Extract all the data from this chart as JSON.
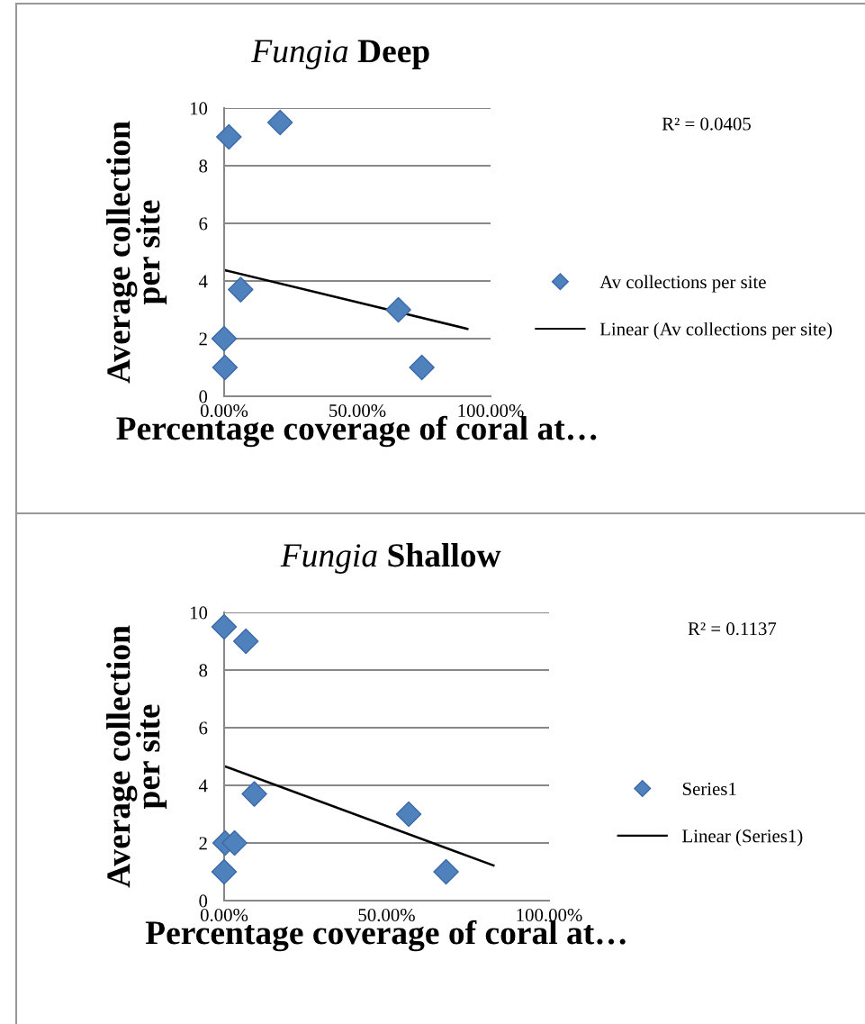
{
  "chart_data": [
    {
      "type": "scatter",
      "title": "Fungia Deep",
      "xlabel": "Percentage coverage of coral at…",
      "ylabel": "Average collection\nper site",
      "annotations": [
        "R² = 0.0405"
      ],
      "x": [
        0.018,
        0.21,
        0.062,
        0.0,
        0.003,
        0.654,
        0.742
      ],
      "series": [
        {
          "name": "Av collections per site",
          "color": "#4f81bd",
          "marker": "diamond",
          "values": [
            9,
            9.5,
            3.7,
            2,
            1,
            3,
            1
          ]
        },
        {
          "type": "line",
          "name": "Linear (Av collections per site)",
          "color": "#000000",
          "x": [
            0,
            0.913
          ],
          "values": [
            4.38,
            2.34
          ]
        }
      ],
      "xlim": [
        0,
        1
      ],
      "xticks": [
        {
          "value": 0,
          "label": "0.00%"
        },
        {
          "value": 0.5,
          "label": "50.00%"
        },
        {
          "value": 1,
          "label": "100.00%"
        }
      ],
      "ylim": [
        0,
        10
      ],
      "yticks": [
        0,
        2,
        4,
        6,
        8,
        10
      ],
      "grid": "y",
      "legend": "right"
    },
    {
      "type": "scatter",
      "title": "Fungia Shallow",
      "xlabel": "Percentage coverage of coral at…",
      "ylabel": "Average collection\nper site",
      "annotations": [
        "R² = 0.1137"
      ],
      "x": [
        0.0,
        0.067,
        0.093,
        0.003,
        0.032,
        0.0,
        0.568,
        0.683
      ],
      "series": [
        {
          "name": "Series1",
          "color": "#4f81bd",
          "marker": "diamond",
          "values": [
            9.5,
            9,
            3.7,
            2,
            2,
            1,
            3,
            1
          ]
        },
        {
          "type": "line",
          "name": "Linear (Series1)",
          "color": "#000000",
          "x": [
            0,
            0.829
          ],
          "values": [
            4.67,
            1.22
          ]
        }
      ],
      "xlim": [
        0,
        1
      ],
      "xticks": [
        {
          "value": 0,
          "label": "0.00%"
        },
        {
          "value": 0.5,
          "label": "50.00%"
        },
        {
          "value": 1,
          "label": "100.00%"
        }
      ],
      "ylim": [
        0,
        10
      ],
      "yticks": [
        0,
        2,
        4,
        6,
        8,
        10
      ],
      "grid": "y",
      "legend": "right"
    }
  ]
}
